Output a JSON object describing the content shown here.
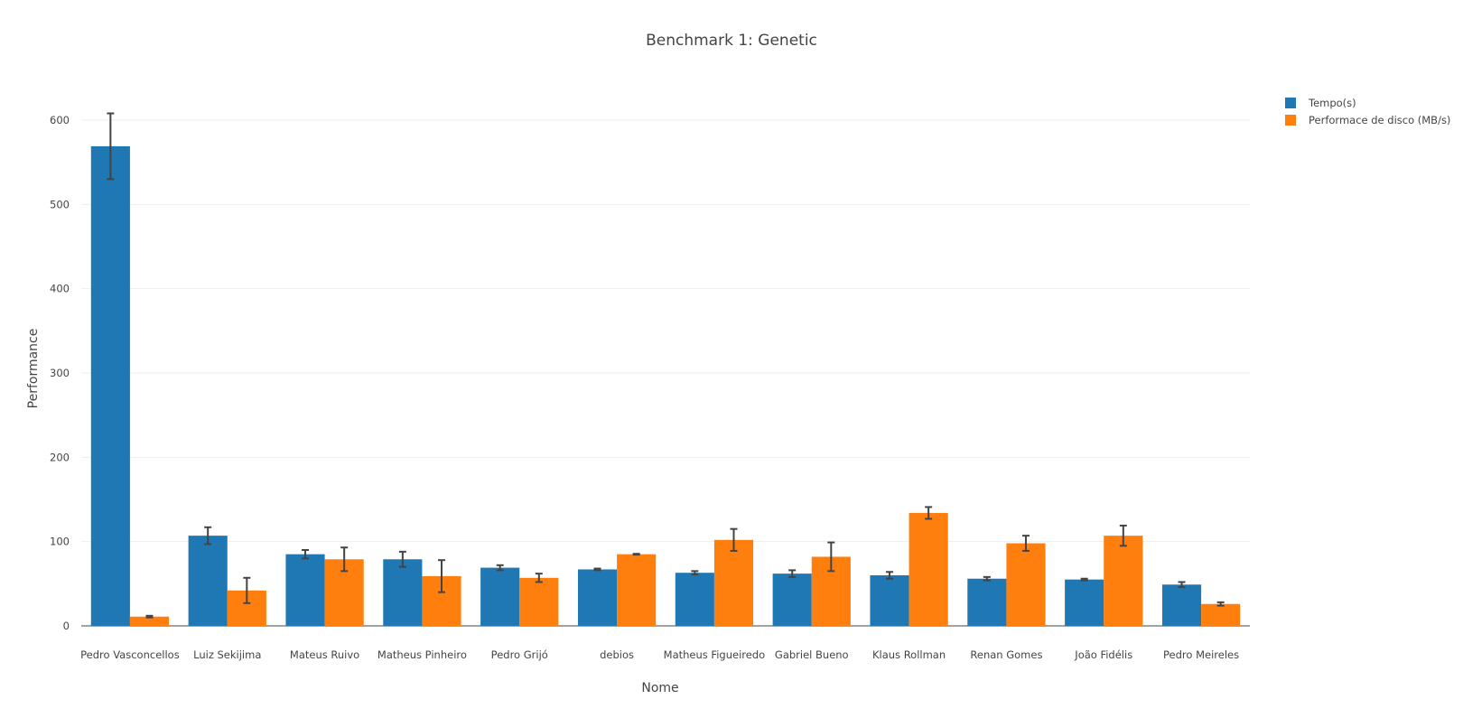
{
  "chart_data": {
    "type": "bar",
    "title": "Benchmark 1: Genetic",
    "xlabel": "Nome",
    "ylabel": "Performance",
    "ylim": [
      0,
      620
    ],
    "yticks": [
      0,
      100,
      200,
      300,
      400,
      500,
      600
    ],
    "grid": true,
    "legend_position": "top-right",
    "categories": [
      "Pedro Vasconcellos",
      "Luiz Sekijima",
      "Mateus Ruivo",
      "Matheus Pinheiro",
      "Pedro Grijó",
      "debios",
      "Matheus Figueiredo",
      "Gabriel Bueno",
      "Klaus Rollman",
      "Renan Gomes",
      "João Fidélis",
      "Pedro Meireles"
    ],
    "series": [
      {
        "name": "Tempo(s)",
        "color": "#1f77b4",
        "values": [
          569,
          107,
          85,
          79,
          69,
          67,
          63,
          62,
          60,
          56,
          55,
          49
        ],
        "errors": [
          39,
          10,
          5,
          9,
          3,
          1,
          2,
          4,
          4,
          2,
          1,
          3
        ]
      },
      {
        "name": "Performace de disco (MB/s)",
        "color": "#ff7f0e",
        "values": [
          11,
          42,
          79,
          59,
          57,
          85,
          102,
          82,
          134,
          98,
          107,
          26
        ],
        "errors": [
          1,
          15,
          14,
          19,
          5,
          0.5,
          13,
          17,
          7,
          9,
          12,
          2
        ]
      }
    ]
  }
}
